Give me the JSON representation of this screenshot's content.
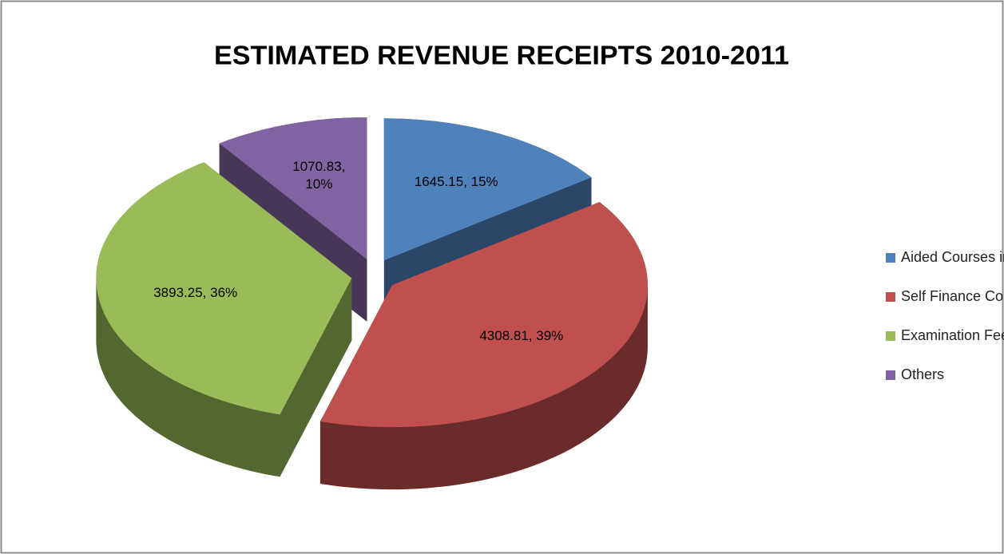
{
  "chart_data": {
    "type": "pie",
    "title": "ESTIMATED REVENUE RECEIPTS 2010-2011",
    "categories": [
      "Aided Courses including USOL",
      "Self Finance Course",
      "Examination Fee",
      "Others"
    ],
    "values": [
      1645.15,
      4308.81,
      3893.25,
      1070.83
    ],
    "value_labels": [
      "1645.15, 15%",
      "4308.81, 39%",
      "3893.25, 36%",
      "1070.83, 10%"
    ],
    "colors": [
      "#4f81bd",
      "#c0504d",
      "#9bbb59",
      "#8064a2"
    ],
    "legend": "right"
  }
}
